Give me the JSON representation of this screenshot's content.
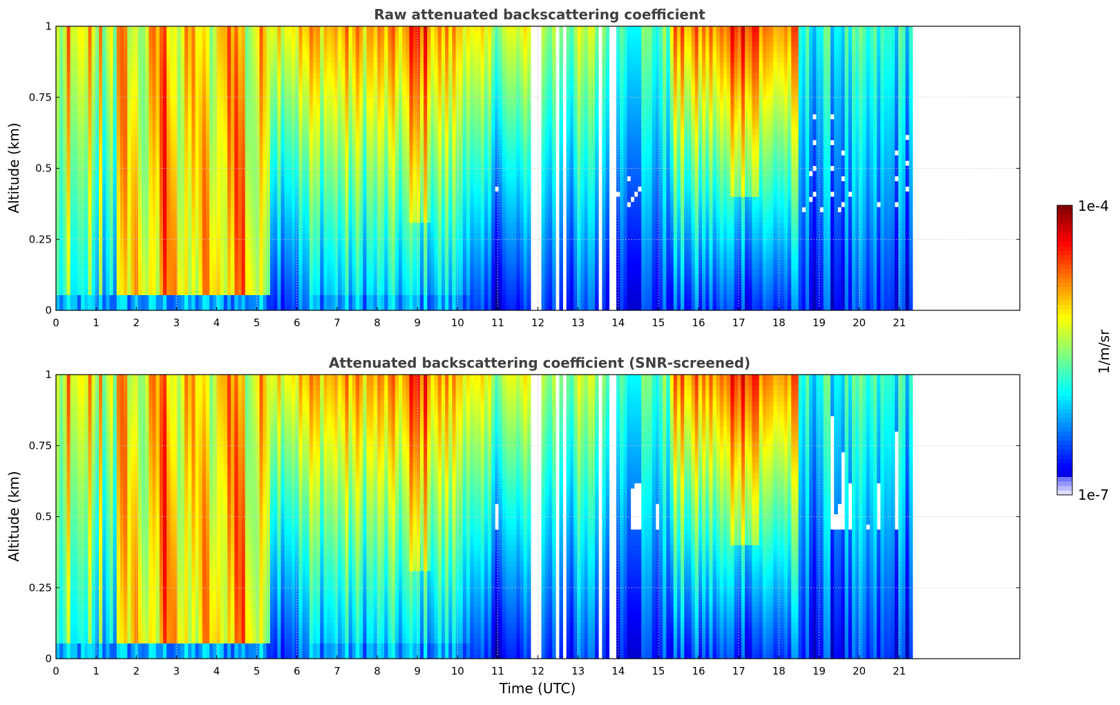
{
  "chart_data": [
    {
      "type": "heatmap",
      "title": "Raw attenuated backscattering coefficient",
      "xlabel": "",
      "ylabel": "Altitude (km)",
      "xlim": [
        0,
        24
      ],
      "ylim": [
        0,
        1
      ],
      "xticks": [
        "0",
        "1",
        "2",
        "3",
        "4",
        "5",
        "6",
        "7",
        "8",
        "9",
        "10",
        "11",
        "12",
        "13",
        "14",
        "15",
        "16",
        "17",
        "18",
        "19",
        "20",
        "21"
      ],
      "yticks": [
        "0",
        "0.25",
        "0.5",
        "0.75",
        "1"
      ],
      "grid": true,
      "data_extent_hours": [
        0,
        21.33
      ],
      "gaps_hours": [
        [
          11.78,
          12.05
        ],
        [
          12.48,
          12.53
        ],
        [
          12.63,
          12.72
        ],
        [
          13.52,
          13.58
        ],
        [
          13.68,
          13.73
        ],
        [
          13.82,
          13.92
        ]
      ],
      "screened": false
    },
    {
      "type": "heatmap",
      "title": "Attenuated backscattering coefficient (SNR-screened)",
      "xlabel": "Time (UTC)",
      "ylabel": "Altitude (km)",
      "xlim": [
        0,
        24
      ],
      "ylim": [
        0,
        1
      ],
      "xticks": [
        "0",
        "1",
        "2",
        "3",
        "4",
        "5",
        "6",
        "7",
        "8",
        "9",
        "10",
        "11",
        "12",
        "13",
        "14",
        "15",
        "16",
        "17",
        "18",
        "19",
        "20",
        "21"
      ],
      "yticks": [
        "0",
        "0.25",
        "0.5",
        "0.75",
        "1"
      ],
      "grid": true,
      "data_extent_hours": [
        0,
        21.33
      ],
      "gaps_hours": [
        [
          11.78,
          12.05
        ],
        [
          12.48,
          12.53
        ],
        [
          12.63,
          12.72
        ],
        [
          13.52,
          13.58
        ],
        [
          13.68,
          13.73
        ],
        [
          13.82,
          13.92
        ]
      ],
      "screened": true
    }
  ],
  "colorbar": {
    "label": "1/m/sr",
    "max_label": "1e-4",
    "min_label": "1e-7",
    "colormap": "jet",
    "scale": "log"
  }
}
